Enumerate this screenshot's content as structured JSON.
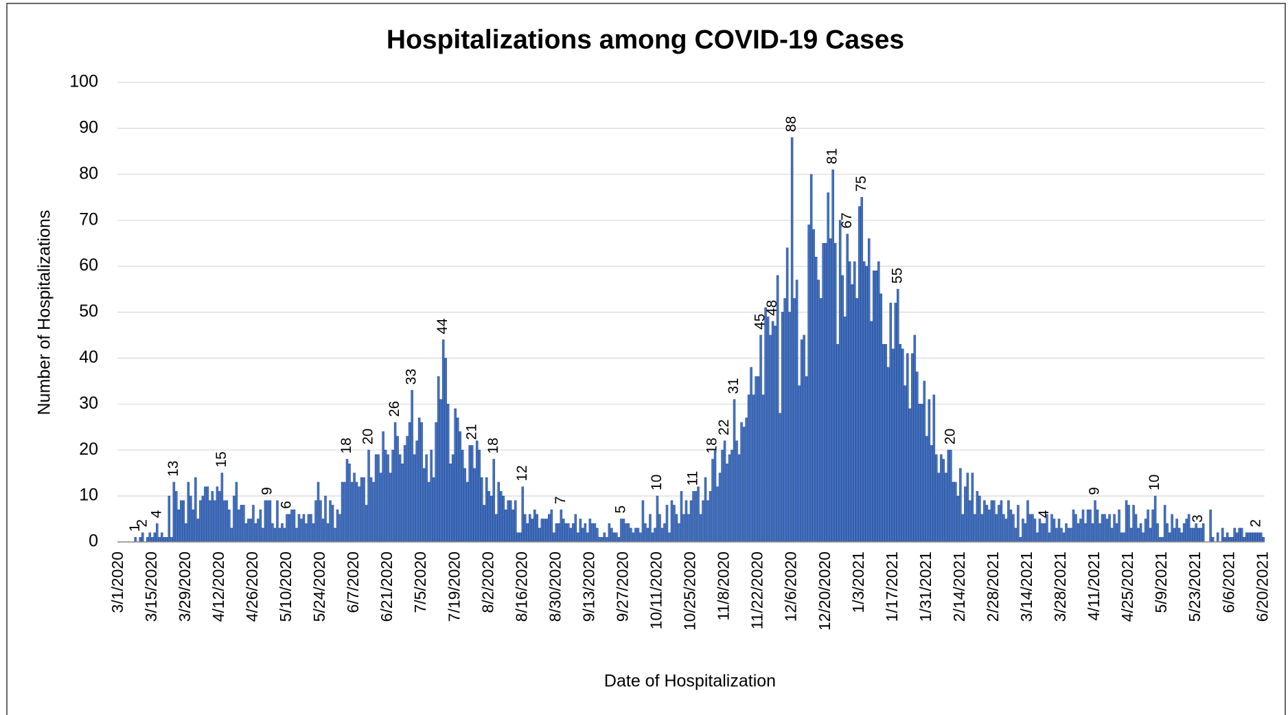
{
  "chart_data": {
    "type": "bar",
    "title": "Hospitalizations among COVID-19 Cases",
    "xlabel": "Date of Hospitalization",
    "ylabel": "Number of Hospitalizations",
    "color": "#4472c4",
    "ylim": [
      0,
      100
    ],
    "yticks": [
      0,
      10,
      20,
      30,
      40,
      50,
      60,
      70,
      80,
      90,
      100
    ],
    "grid": true,
    "categories": [
      "3/1/2020",
      null,
      null,
      null,
      null,
      null,
      null,
      null,
      null,
      null,
      null,
      null,
      null,
      null,
      "3/15/2020",
      null,
      null,
      null,
      null,
      null,
      null,
      null,
      null,
      null,
      null,
      null,
      null,
      null,
      "3/29/2020",
      null,
      null,
      null,
      null,
      null,
      null,
      null,
      null,
      null,
      null,
      null,
      null,
      null,
      "4/12/2020",
      null,
      null,
      null,
      null,
      null,
      null,
      null,
      null,
      null,
      null,
      null,
      null,
      null,
      "4/26/2020",
      null,
      null,
      null,
      null,
      null,
      null,
      null,
      null,
      null,
      null,
      null,
      null,
      null,
      "5/10/2020",
      null,
      null,
      null,
      null,
      null,
      null,
      null,
      null,
      null,
      null,
      null,
      null,
      null,
      "5/24/2020",
      null,
      null,
      null,
      null,
      null,
      null,
      null,
      null,
      null,
      null,
      null,
      null,
      null,
      "6/7/2020",
      null,
      null,
      null,
      null,
      null,
      null,
      null,
      null,
      null,
      null,
      null,
      null,
      null,
      "6/21/2020",
      null,
      null,
      null,
      null,
      null,
      null,
      null,
      null,
      null,
      null,
      null,
      null,
      null,
      "7/5/2020",
      null,
      null,
      null,
      null,
      null,
      null,
      null,
      null,
      null,
      null,
      null,
      null,
      null,
      "7/19/2020",
      null,
      null,
      null,
      null,
      null,
      null,
      null,
      null,
      null,
      null,
      null,
      null,
      null,
      "8/2/2020",
      null,
      null,
      null,
      null,
      null,
      null,
      null,
      null,
      null,
      null,
      null,
      null,
      null,
      "8/16/2020",
      null,
      null,
      null,
      null,
      null,
      null,
      null,
      null,
      null,
      null,
      null,
      null,
      null,
      "8/30/2020",
      null,
      null,
      null,
      null,
      null,
      null,
      null,
      null,
      null,
      null,
      null,
      null,
      null,
      "9/13/2020",
      null,
      null,
      null,
      null,
      null,
      null,
      null,
      null,
      null,
      null,
      null,
      null,
      null,
      "9/27/2020",
      null,
      null,
      null,
      null,
      null,
      null,
      null,
      null,
      null,
      null,
      null,
      null,
      null,
      "10/11/2020",
      null,
      null,
      null,
      null,
      null,
      null,
      null,
      null,
      null,
      null,
      null,
      null,
      null,
      "10/25/2020",
      null,
      null,
      null,
      null,
      null,
      null,
      null,
      null,
      null,
      null,
      null,
      null,
      null,
      "11/8/2020",
      null,
      null,
      null,
      null,
      null,
      null,
      null,
      null,
      null,
      null,
      null,
      null,
      null,
      "11/22/2020",
      null,
      null,
      null,
      null,
      null,
      null,
      null,
      null,
      null,
      null,
      null,
      null,
      null,
      "12/6/2020",
      null,
      null,
      null,
      null,
      null,
      null,
      null,
      null,
      null,
      null,
      null,
      null,
      null,
      "12/20/2020",
      null,
      null,
      null,
      null,
      null,
      null,
      null,
      null,
      null,
      null,
      null,
      null,
      null,
      "1/3/2021",
      null,
      null,
      null,
      null,
      null,
      null,
      null,
      null,
      null,
      null,
      null,
      null,
      null,
      "1/17/2021",
      null,
      null,
      null,
      null,
      null,
      null,
      null,
      null,
      null,
      null,
      null,
      null,
      null,
      "1/31/2021",
      null,
      null,
      null,
      null,
      null,
      null,
      null,
      null,
      null,
      null,
      null,
      null,
      null,
      "2/14/2021",
      null,
      null,
      null,
      null,
      null,
      null,
      null,
      null,
      null,
      null,
      null,
      null,
      null,
      "2/28/2021",
      null,
      null,
      null,
      null,
      null,
      null,
      null,
      null,
      null,
      null,
      null,
      null,
      null,
      "3/14/2021",
      null,
      null,
      null,
      null,
      null,
      null,
      null,
      null,
      null,
      null,
      null,
      null,
      null,
      "3/28/2021",
      null,
      null,
      null,
      null,
      null,
      null,
      null,
      null,
      null,
      null,
      null,
      null,
      null,
      "4/11/2021",
      null,
      null,
      null,
      null,
      null,
      null,
      null,
      null,
      null,
      null,
      null,
      null,
      null,
      "4/25/2021",
      null,
      null,
      null,
      null,
      null,
      null,
      null,
      null,
      null,
      null,
      null,
      null,
      null,
      "5/9/2021",
      null,
      null,
      null,
      null,
      null,
      null,
      null,
      null,
      null,
      null,
      null,
      null,
      null,
      "5/23/2021",
      null,
      null,
      null,
      null,
      null,
      null,
      null,
      null,
      null,
      null,
      null,
      null,
      null,
      "6/6/2021",
      null,
      null,
      null,
      null,
      null,
      null,
      null,
      null,
      null,
      null,
      null,
      null,
      null,
      "6/20/2021"
    ],
    "values": [
      0,
      0,
      0,
      0,
      0,
      0,
      0,
      1,
      0,
      1,
      2,
      0,
      1,
      2,
      1,
      2,
      4,
      1,
      2,
      1,
      1,
      10,
      1,
      13,
      11,
      7,
      9,
      9,
      4,
      13,
      10,
      7,
      14,
      5,
      9,
      10,
      12,
      12,
      9,
      11,
      9,
      12,
      11,
      15,
      9,
      9,
      7,
      3,
      10,
      13,
      7,
      8,
      8,
      4,
      5,
      5,
      8,
      4,
      5,
      7,
      3,
      9,
      9,
      9,
      4,
      3,
      9,
      3,
      4,
      3,
      6,
      6,
      7,
      7,
      3,
      6,
      5,
      6,
      4,
      6,
      6,
      4,
      9,
      13,
      9,
      5,
      10,
      4,
      9,
      8,
      3,
      7,
      6,
      13,
      13,
      18,
      17,
      13,
      15,
      13,
      12,
      14,
      14,
      8,
      20,
      14,
      13,
      19,
      19,
      15,
      24,
      20,
      19,
      15,
      20,
      26,
      23,
      19,
      17,
      21,
      23,
      26,
      33,
      19,
      22,
      27,
      26,
      16,
      19,
      13,
      20,
      14,
      26,
      36,
      31,
      44,
      40,
      30,
      17,
      19,
      29,
      27,
      24,
      20,
      16,
      13,
      21,
      21,
      16,
      22,
      20,
      14,
      8,
      14,
      11,
      10,
      18,
      6,
      13,
      11,
      10,
      7,
      9,
      9,
      7,
      9,
      2,
      2,
      12,
      6,
      4,
      6,
      5,
      7,
      6,
      3,
      5,
      5,
      5,
      6,
      7,
      2,
      4,
      4,
      7,
      5,
      4,
      4,
      3,
      4,
      6,
      2,
      5,
      3,
      4,
      2,
      5,
      4,
      4,
      3,
      1,
      1,
      2,
      1,
      4,
      3,
      2,
      2,
      1,
      5,
      5,
      4,
      4,
      3,
      2,
      3,
      3,
      2,
      9,
      4,
      3,
      6,
      2,
      3,
      10,
      6,
      3,
      4,
      8,
      2,
      9,
      8,
      6,
      4,
      11,
      6,
      9,
      6,
      9,
      11,
      11,
      12,
      6,
      9,
      14,
      9,
      11,
      18,
      20,
      12,
      15,
      20,
      22,
      17,
      19,
      20,
      31,
      22,
      19,
      26,
      25,
      27,
      32,
      38,
      32,
      36,
      36,
      45,
      32,
      51,
      49,
      45,
      48,
      47,
      58,
      28,
      50,
      53,
      64,
      50,
      88,
      53,
      57,
      34,
      44,
      45,
      36,
      69,
      80,
      68,
      62,
      57,
      53,
      65,
      65,
      76,
      66,
      81,
      65,
      43,
      70,
      58,
      49,
      67,
      61,
      56,
      61,
      53,
      73,
      75,
      61,
      60,
      66,
      48,
      59,
      59,
      61,
      54,
      43,
      43,
      38,
      52,
      42,
      52,
      55,
      43,
      42,
      34,
      41,
      29,
      41,
      45,
      37,
      30,
      30,
      35,
      23,
      31,
      21,
      32,
      19,
      15,
      19,
      18,
      15,
      20,
      20,
      13,
      13,
      10,
      16,
      6,
      12,
      15,
      9,
      15,
      6,
      11,
      10,
      6,
      9,
      8,
      7,
      9,
      9,
      6,
      8,
      9,
      6,
      5,
      9,
      7,
      6,
      3,
      8,
      1,
      5,
      4,
      9,
      6,
      6,
      5,
      2,
      5,
      4,
      4,
      6,
      2,
      6,
      5,
      3,
      5,
      3,
      2,
      4,
      3,
      3,
      7,
      6,
      4,
      5,
      7,
      4,
      7,
      7,
      4,
      9,
      7,
      4,
      6,
      6,
      5,
      6,
      3,
      6,
      4,
      7,
      2,
      2,
      9,
      8,
      3,
      8,
      6,
      3,
      4,
      2,
      5,
      7,
      3,
      7,
      10,
      4,
      1,
      1,
      8,
      4,
      2,
      6,
      3,
      5,
      3,
      2,
      4,
      5,
      6,
      3,
      3,
      4,
      3,
      3,
      4,
      0,
      0,
      7,
      1,
      0,
      2,
      0,
      3,
      1,
      2,
      1,
      1,
      3,
      2,
      3,
      3,
      1,
      2,
      2,
      2,
      2,
      2,
      2,
      2,
      1
    ],
    "value_labels": [
      null,
      null,
      null,
      null,
      null,
      null,
      null,
      "1",
      null,
      null,
      "2",
      null,
      null,
      null,
      null,
      null,
      "4",
      null,
      null,
      null,
      null,
      null,
      null,
      "13",
      null,
      null,
      null,
      null,
      null,
      null,
      null,
      null,
      null,
      null,
      null,
      null,
      null,
      null,
      null,
      null,
      null,
      null,
      null,
      "15",
      null,
      null,
      null,
      null,
      null,
      null,
      null,
      null,
      null,
      null,
      null,
      null,
      null,
      null,
      null,
      null,
      null,
      null,
      "9",
      null,
      null,
      null,
      null,
      null,
      null,
      null,
      "6",
      null,
      null,
      null,
      null,
      null,
      null,
      null,
      null,
      null,
      null,
      null,
      null,
      null,
      null,
      null,
      null,
      null,
      null,
      null,
      null,
      null,
      null,
      null,
      null,
      "18",
      null,
      null,
      null,
      null,
      null,
      null,
      null,
      null,
      "20",
      null,
      null,
      null,
      null,
      null,
      null,
      null,
      null,
      null,
      null,
      "26",
      null,
      null,
      null,
      null,
      null,
      null,
      "33",
      null,
      null,
      null,
      null,
      null,
      null,
      null,
      null,
      null,
      null,
      null,
      null,
      "44",
      null,
      null,
      null,
      null,
      null,
      null,
      null,
      null,
      null,
      null,
      null,
      "21",
      null,
      null,
      null,
      null,
      null,
      null,
      null,
      null,
      "18",
      null,
      null,
      null,
      null,
      null,
      null,
      null,
      null,
      null,
      null,
      null,
      "12",
      null,
      null,
      null,
      null,
      null,
      null,
      null,
      null,
      null,
      null,
      null,
      null,
      null,
      null,
      null,
      "7",
      null,
      null,
      null,
      null,
      null,
      null,
      null,
      null,
      null,
      null,
      null,
      null,
      null,
      null,
      null,
      null,
      null,
      null,
      null,
      null,
      null,
      null,
      null,
      null,
      "5",
      null,
      null,
      null,
      null,
      null,
      null,
      null,
      null,
      null,
      null,
      null,
      null,
      null,
      null,
      "10",
      null,
      null,
      null,
      null,
      null,
      null,
      null,
      null,
      null,
      null,
      null,
      null,
      null,
      null,
      "11",
      null,
      null,
      null,
      null,
      null,
      null,
      null,
      "18",
      null,
      null,
      null,
      null,
      "22",
      null,
      null,
      null,
      "31",
      null,
      null,
      null,
      null,
      null,
      null,
      null,
      null,
      null,
      null,
      "45",
      null,
      null,
      null,
      null,
      "48",
      null,
      null,
      null,
      null,
      null,
      null,
      null,
      "88",
      null,
      null,
      null,
      null,
      null,
      null,
      null,
      null,
      null,
      null,
      null,
      null,
      null,
      null,
      null,
      null,
      "81",
      null,
      null,
      null,
      null,
      null,
      "67",
      null,
      null,
      null,
      null,
      null,
      "75",
      null,
      null,
      null,
      null,
      null,
      null,
      null,
      null,
      null,
      null,
      null,
      null,
      null,
      null,
      "55",
      null,
      null,
      null,
      null,
      null,
      null,
      null,
      null,
      null,
      null,
      null,
      null,
      null,
      null,
      null,
      null,
      null,
      null,
      null,
      null,
      null,
      "20",
      null,
      null,
      null,
      null,
      null,
      null,
      null,
      null,
      null,
      null,
      null,
      null,
      null,
      null,
      null,
      null,
      null,
      null,
      null,
      null,
      null,
      null,
      null,
      null,
      null,
      null,
      null,
      null,
      null,
      null,
      null,
      null,
      null,
      null,
      null,
      null,
      null,
      null,
      "4",
      null,
      null,
      null,
      null,
      null,
      null,
      null,
      null,
      null,
      null,
      null,
      null,
      null,
      null,
      null,
      null,
      null,
      null,
      null,
      null,
      "9",
      null,
      null,
      null,
      null,
      null,
      null,
      null,
      null,
      null,
      null,
      null,
      null,
      null,
      null,
      null,
      null,
      null,
      null,
      null,
      null,
      null,
      null,
      null,
      null,
      "10",
      null,
      null,
      null,
      null,
      null,
      null,
      null,
      null,
      null,
      null,
      null,
      null,
      null,
      null,
      null,
      null,
      null,
      "3",
      null,
      null,
      null,
      null,
      null,
      null,
      null,
      null,
      null,
      null,
      null,
      null,
      null,
      null,
      null,
      null,
      null,
      null,
      null,
      null,
      null,
      null,
      null,
      "2",
      null,
      null,
      null
    ]
  }
}
